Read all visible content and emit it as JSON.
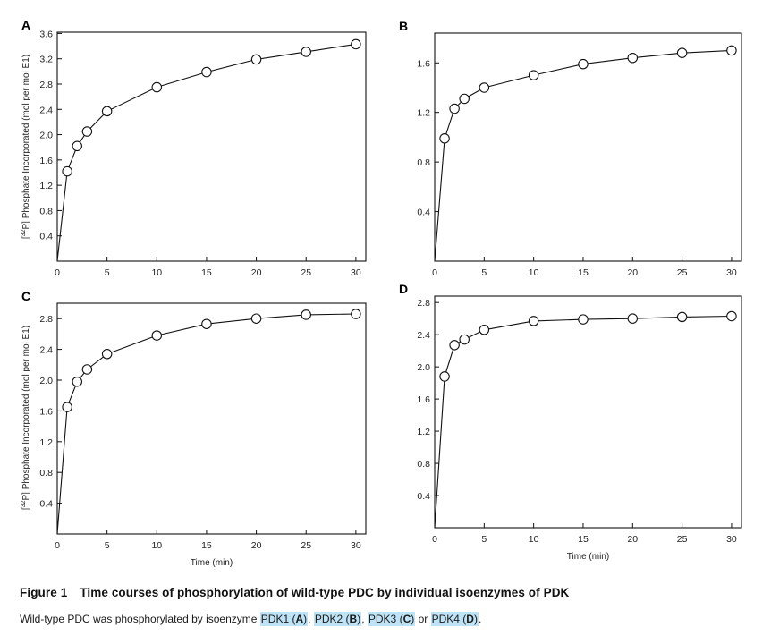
{
  "figure": {
    "ylabel": "[32P] Phosphate Incorporated (mol per mol E1)",
    "ylabel_superscript": "32",
    "xlabel": "Time (min)"
  },
  "caption": {
    "title_label": "Figure 1",
    "title_text": "Time courses of phosphorylation of wild-type PDC by individual isoenzymes of PDK",
    "text_prefix": "Wild-type PDC was phosphorylated by isoenzyme ",
    "items": [
      {
        "name": "PDK1",
        "letter": "A",
        "sep": ", "
      },
      {
        "name": "PDK2",
        "letter": "B",
        "sep": ", "
      },
      {
        "name": "PDK3",
        "letter": "C",
        "sep": " or "
      },
      {
        "name": "PDK4",
        "letter": "D",
        "sep": "."
      }
    ]
  },
  "chart_data": [
    {
      "panel": "A",
      "type": "line",
      "marker": "open-circle",
      "xlabel": "",
      "ylabel": "[32P] Phosphate Incorporated (mol per mol E1)",
      "xlim": [
        0,
        31
      ],
      "ylim": [
        0,
        3.62
      ],
      "xticks": [
        0,
        5,
        10,
        15,
        20,
        25,
        30
      ],
      "yticks": [
        0.4,
        0.8,
        1.2,
        1.6,
        2.0,
        2.4,
        2.8,
        3.2,
        3.6
      ],
      "ytick_labels": [
        "0.4",
        "0.8",
        "1.2",
        "1.6",
        "2.0",
        "2.4",
        "2.8",
        "3.2",
        "3.6"
      ],
      "x": [
        0,
        1,
        2,
        3,
        5,
        10,
        15,
        20,
        25,
        30
      ],
      "y": [
        0,
        1.42,
        1.82,
        2.05,
        2.37,
        2.75,
        2.99,
        3.19,
        3.31,
        3.43
      ]
    },
    {
      "panel": "B",
      "type": "line",
      "marker": "open-circle",
      "xlabel": "",
      "ylabel": "",
      "xlim": [
        0,
        31
      ],
      "ylim": [
        0,
        1.84
      ],
      "xticks": [
        0,
        5,
        10,
        15,
        20,
        25,
        30
      ],
      "yticks": [
        0.4,
        0.8,
        1.2,
        1.6
      ],
      "ytick_labels": [
        "0.4",
        "0.8",
        "1.2",
        "1.6"
      ],
      "x": [
        0,
        1,
        2,
        3,
        5,
        10,
        15,
        20,
        25,
        30
      ],
      "y": [
        0,
        0.99,
        1.23,
        1.31,
        1.4,
        1.5,
        1.59,
        1.64,
        1.68,
        1.7
      ]
    },
    {
      "panel": "C",
      "type": "line",
      "marker": "open-circle",
      "xlabel": "Time (min)",
      "ylabel": "[32P] Phosphate Incorporated (mol per mol E1)",
      "xlim": [
        0,
        31
      ],
      "ylim": [
        0,
        3.0
      ],
      "xticks": [
        0,
        5,
        10,
        15,
        20,
        25,
        30
      ],
      "yticks": [
        0.4,
        0.8,
        1.2,
        1.6,
        2.0,
        2.4,
        2.8
      ],
      "ytick_labels": [
        "0.4",
        "0.8",
        "1.2",
        "1.6",
        "2.0",
        "2.4",
        "2.8"
      ],
      "x": [
        0,
        1,
        2,
        3,
        5,
        10,
        15,
        20,
        25,
        30
      ],
      "y": [
        0,
        1.65,
        1.98,
        2.14,
        2.34,
        2.58,
        2.73,
        2.8,
        2.85,
        2.86
      ]
    },
    {
      "panel": "D",
      "type": "line",
      "marker": "open-circle",
      "xlabel": "Time (min)",
      "ylabel": "",
      "xlim": [
        0,
        31
      ],
      "ylim": [
        0,
        2.88
      ],
      "xticks": [
        0,
        5,
        10,
        15,
        20,
        25,
        30
      ],
      "yticks": [
        0.4,
        0.8,
        1.2,
        1.6,
        2.0,
        2.4,
        2.8
      ],
      "ytick_labels": [
        "0.4",
        "0.8",
        "1.2",
        "1.6",
        "2.0",
        "2.4",
        "2.8"
      ],
      "x": [
        0,
        1,
        2,
        3,
        5,
        10,
        15,
        20,
        25,
        30
      ],
      "y": [
        0,
        1.88,
        2.27,
        2.34,
        2.46,
        2.57,
        2.59,
        2.6,
        2.62,
        2.63
      ]
    }
  ]
}
